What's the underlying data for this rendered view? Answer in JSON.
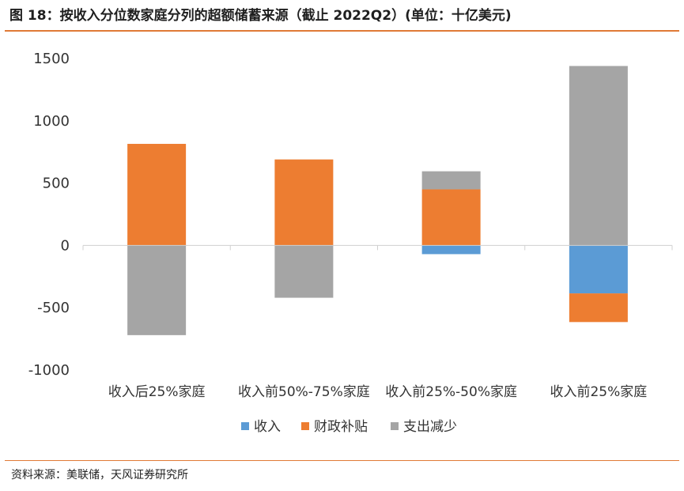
{
  "header": {
    "title": "图 18：按收入分位数家庭分列的超额储蓄来源（截止 2022Q2）(单位：十亿美元)"
  },
  "footer": {
    "source": "资料来源：美联储，天风证券研究所"
  },
  "colors": {
    "income": "#5b9bd5",
    "fiscal": "#ed7d31",
    "spending": "#a5a5a5",
    "accent": "#e07a36"
  },
  "chart_data": {
    "type": "bar",
    "stacked": true,
    "categories": [
      "收入后25%家庭",
      "收入前50%-75%家庭",
      "收入前25%-50%家庭",
      "收入前25%家庭"
    ],
    "series": [
      {
        "name": "收入",
        "values": [
          0,
          0,
          -70,
          -385
        ]
      },
      {
        "name": "财政补贴",
        "values": [
          815,
          690,
          450,
          -230
        ]
      },
      {
        "name": "支出减少",
        "values": [
          -720,
          -420,
          145,
          1440
        ]
      }
    ],
    "ylim": [
      -1000,
      1500
    ],
    "yticks": [
      "1500",
      "1000",
      "500",
      "0",
      "-500",
      "-1000"
    ],
    "ytick_values": [
      1500,
      1000,
      500,
      0,
      -500,
      -1000
    ],
    "legend_position": "bottom",
    "grid": false
  }
}
